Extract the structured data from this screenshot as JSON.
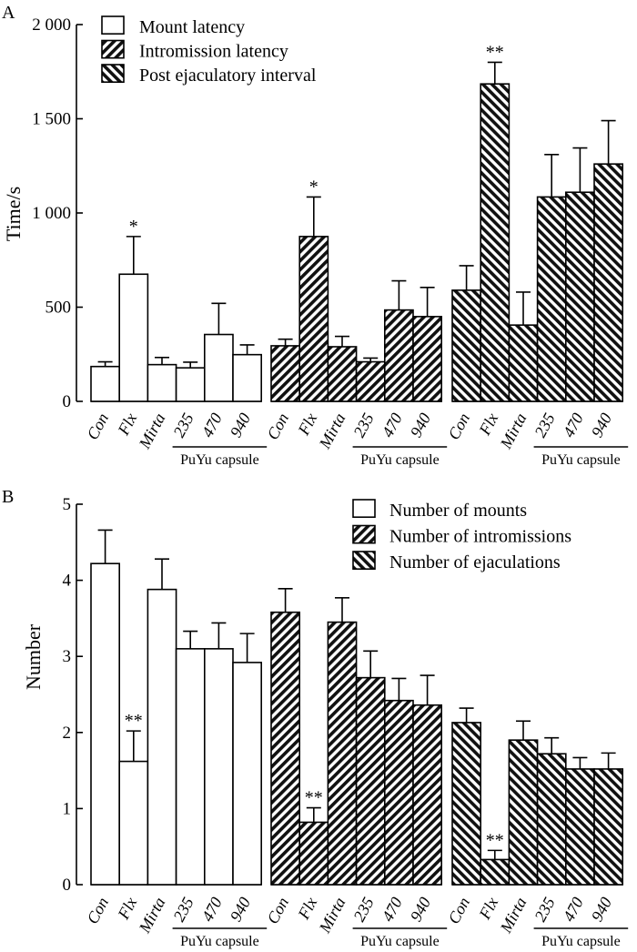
{
  "chart_data": [
    {
      "panel": "A",
      "type": "bar",
      "ylabel": "Time/s",
      "ylim": [
        0,
        2000
      ],
      "yticks": [
        0,
        500,
        1000,
        1500,
        2000
      ],
      "ytick_labels": [
        "0",
        "500",
        "1 000",
        "1 500",
        "2 000"
      ],
      "categories": [
        "Con",
        "Flx",
        "Mirta",
        "235",
        "470",
        "940"
      ],
      "group_label": "PuYu capsule",
      "legend": [
        "Mount latency",
        "Intromission latency",
        "Post ejaculatory interval"
      ],
      "series": [
        {
          "name": "Mount latency",
          "pattern": "white",
          "values": [
            185,
            675,
            195,
            178,
            355,
            248
          ],
          "errors": [
            25,
            200,
            38,
            30,
            165,
            52
          ],
          "sig": [
            "",
            "*",
            "",
            "",
            "",
            ""
          ]
        },
        {
          "name": "Intromission latency",
          "pattern": "hatch-fwd",
          "values": [
            295,
            875,
            290,
            210,
            485,
            450
          ],
          "errors": [
            35,
            210,
            55,
            20,
            155,
            155
          ],
          "sig": [
            "",
            "*",
            "",
            "",
            "",
            ""
          ]
        },
        {
          "name": "Post ejaculatory interval",
          "pattern": "hatch-back",
          "values": [
            590,
            1685,
            405,
            1085,
            1110,
            1260
          ],
          "errors": [
            130,
            115,
            175,
            225,
            235,
            230
          ],
          "sig": [
            "",
            "**",
            "",
            "",
            "",
            ""
          ]
        }
      ]
    },
    {
      "panel": "B",
      "type": "bar",
      "ylabel": "Number",
      "ylim": [
        0,
        5
      ],
      "yticks": [
        0,
        1,
        2,
        3,
        4,
        5
      ],
      "ytick_labels": [
        "0",
        "1",
        "2",
        "3",
        "4",
        "5"
      ],
      "categories": [
        "Con",
        "Flx",
        "Mirta",
        "235",
        "470",
        "940"
      ],
      "group_label": "PuYu capsule",
      "legend": [
        "Number of mounts",
        "Number of intromissions",
        "Number of ejaculations"
      ],
      "series": [
        {
          "name": "Number of mounts",
          "pattern": "white",
          "values": [
            4.22,
            1.62,
            3.88,
            3.1,
            3.1,
            2.92
          ],
          "errors": [
            0.44,
            0.4,
            0.4,
            0.23,
            0.34,
            0.38
          ],
          "sig": [
            "",
            "**",
            "",
            "",
            "",
            ""
          ]
        },
        {
          "name": "Number of intromissions",
          "pattern": "hatch-fwd",
          "values": [
            3.58,
            0.82,
            3.45,
            2.72,
            2.42,
            2.36
          ],
          "errors": [
            0.31,
            0.19,
            0.32,
            0.35,
            0.29,
            0.39
          ],
          "sig": [
            "",
            "**",
            "",
            "",
            "",
            ""
          ]
        },
        {
          "name": "Number of ejaculations",
          "pattern": "hatch-back",
          "values": [
            2.13,
            0.33,
            1.9,
            1.72,
            1.52,
            1.52
          ],
          "errors": [
            0.19,
            0.12,
            0.25,
            0.21,
            0.15,
            0.21
          ],
          "sig": [
            "",
            "**",
            "",
            "",
            "",
            ""
          ]
        }
      ]
    }
  ]
}
